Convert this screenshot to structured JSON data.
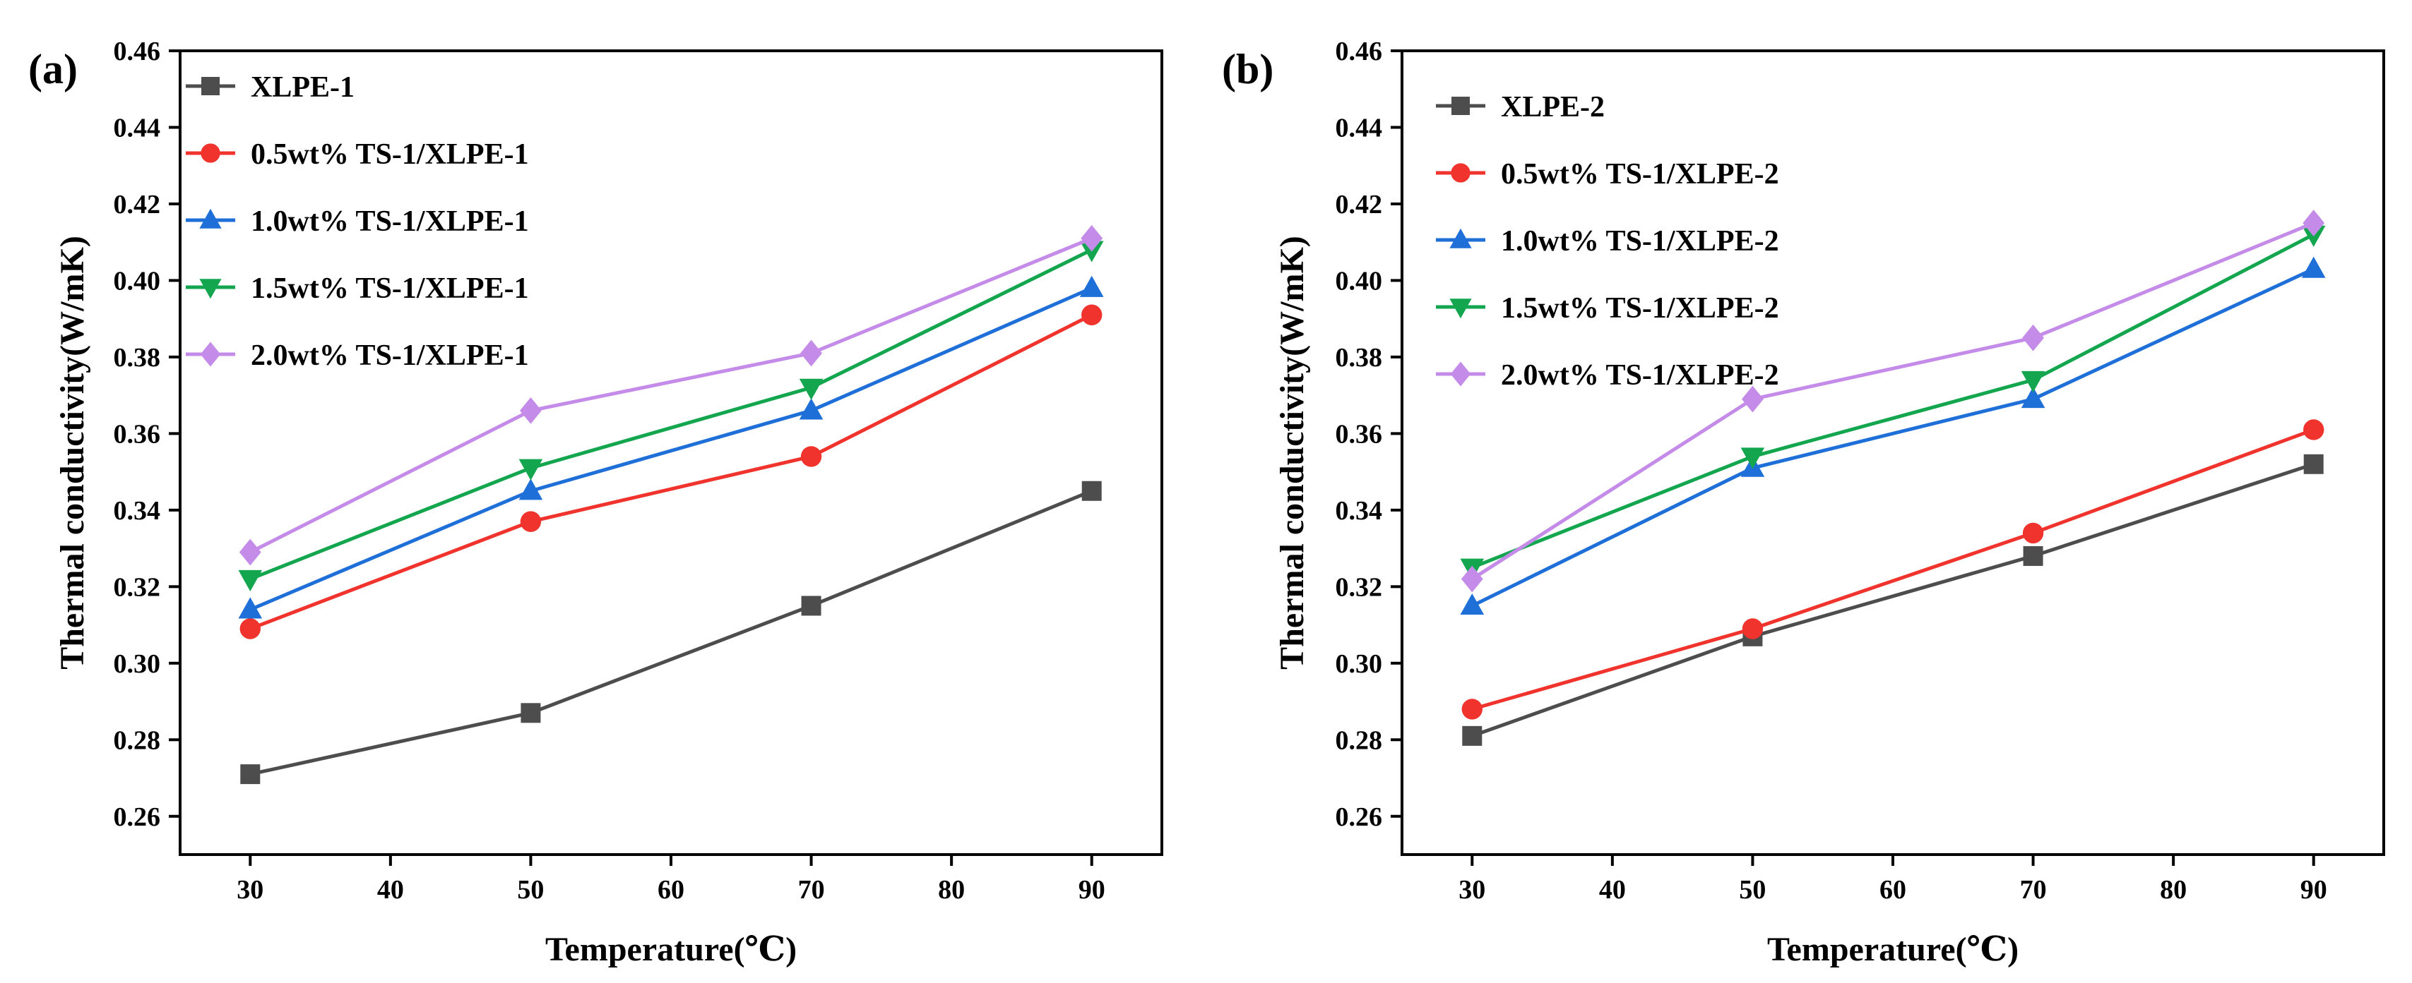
{
  "chart_data": [
    {
      "type": "line",
      "panel_label": "(a)",
      "xlabel": "Temperature(℃)",
      "ylabel": "Thermal conductivity(W/mK)",
      "x": [
        30,
        50,
        70,
        90
      ],
      "xlim": [
        25,
        95
      ],
      "ylim": [
        0.25,
        0.46
      ],
      "xticks": [
        30,
        40,
        50,
        60,
        70,
        80,
        90
      ],
      "yticks": [
        "0.26",
        "0.28",
        "0.30",
        "0.32",
        "0.34",
        "0.36",
        "0.38",
        "0.40",
        "0.42",
        "0.44",
        "0.46"
      ],
      "legend_position": "top-left",
      "series": [
        {
          "name": "XLPE-1",
          "color": "#4d4d4d",
          "marker": "square",
          "values": [
            0.271,
            0.287,
            0.315,
            0.345
          ]
        },
        {
          "name": "0.5wt% TS-1/XLPE-1",
          "color": "#f0332c",
          "marker": "circle",
          "values": [
            0.309,
            0.337,
            0.354,
            0.391
          ]
        },
        {
          "name": "1.0wt% TS-1/XLPE-1",
          "color": "#1f6fd8",
          "marker": "triangle-up",
          "values": [
            0.314,
            0.345,
            0.366,
            0.398
          ]
        },
        {
          "name": "1.5wt% TS-1/XLPE-1",
          "color": "#13a64f",
          "marker": "triangle-down",
          "values": [
            0.322,
            0.351,
            0.372,
            0.408
          ]
        },
        {
          "name": "2.0wt% TS-1/XLPE-1",
          "color": "#c48ce8",
          "marker": "diamond",
          "values": [
            0.329,
            0.366,
            0.381,
            0.411
          ]
        }
      ]
    },
    {
      "type": "line",
      "panel_label": "(b)",
      "xlabel": "Temperature(℃)",
      "ylabel": "Thermal conductivity(W/mK)",
      "x": [
        30,
        50,
        70,
        90
      ],
      "xlim": [
        25,
        95
      ],
      "ylim": [
        0.25,
        0.46
      ],
      "xticks": [
        30,
        40,
        50,
        60,
        70,
        80,
        90
      ],
      "yticks": [
        "0.26",
        "0.28",
        "0.30",
        "0.32",
        "0.34",
        "0.36",
        "0.38",
        "0.40",
        "0.42",
        "0.44",
        "0.46"
      ],
      "legend_position": "top-left",
      "series": [
        {
          "name": "XLPE-2",
          "color": "#4d4d4d",
          "marker": "square",
          "values": [
            0.281,
            0.307,
            0.328,
            0.352
          ]
        },
        {
          "name": "0.5wt% TS-1/XLPE-2",
          "color": "#f0332c",
          "marker": "circle",
          "values": [
            0.288,
            0.309,
            0.334,
            0.361
          ]
        },
        {
          "name": "1.0wt% TS-1/XLPE-2",
          "color": "#1f6fd8",
          "marker": "triangle-up",
          "values": [
            0.315,
            0.351,
            0.369,
            0.403
          ]
        },
        {
          "name": "1.5wt% TS-1/XLPE-2",
          "color": "#13a64f",
          "marker": "triangle-down",
          "values": [
            0.325,
            0.354,
            0.374,
            0.412
          ]
        },
        {
          "name": "2.0wt% TS-1/XLPE-2",
          "color": "#c48ce8",
          "marker": "diamond",
          "values": [
            0.322,
            0.369,
            0.385,
            0.415
          ]
        }
      ]
    }
  ]
}
